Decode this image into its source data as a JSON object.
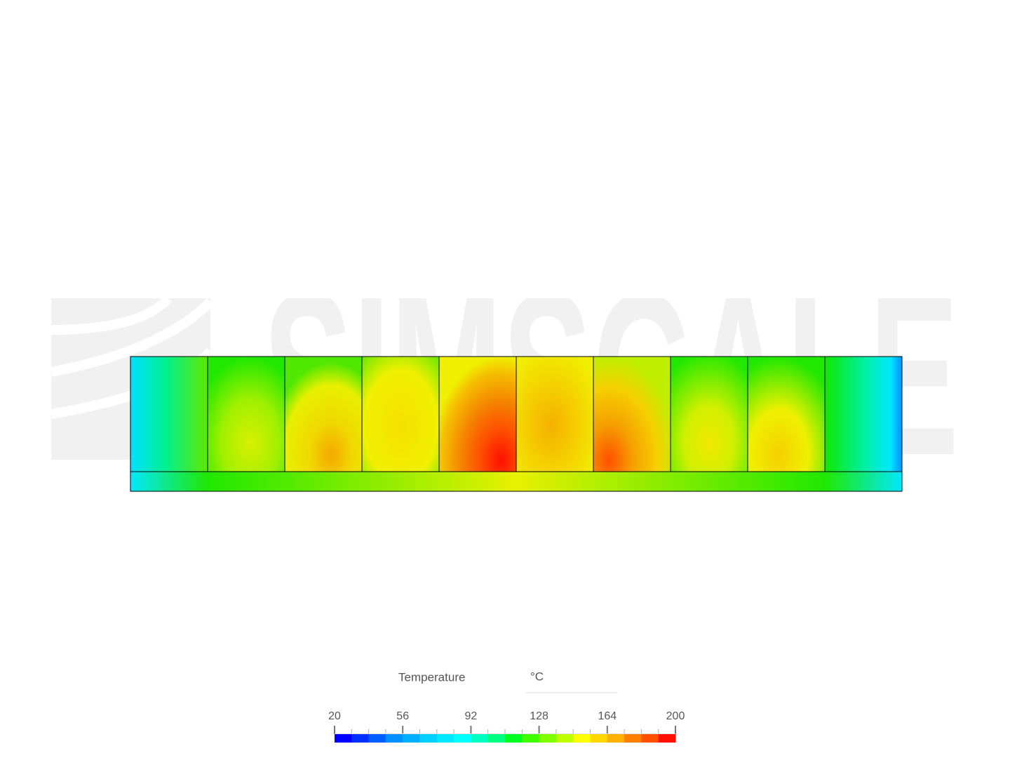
{
  "watermark": "SIMSCALE",
  "legend": {
    "title": "Temperature",
    "unit": "°C",
    "range": [
      20,
      200
    ],
    "ticks": [
      20,
      56,
      92,
      128,
      164,
      200
    ],
    "colors": [
      "#0000ff",
      "#0030ff",
      "#0060ff",
      "#0090ff",
      "#00b0ff",
      "#00d0ff",
      "#00e8ff",
      "#00ffff",
      "#00ffc0",
      "#00ff80",
      "#00ff20",
      "#40ff00",
      "#80ff00",
      "#c0ff00",
      "#ffff00",
      "#ffd800",
      "#ffb000",
      "#ff8000",
      "#ff5000",
      "#ff1000"
    ]
  }
}
